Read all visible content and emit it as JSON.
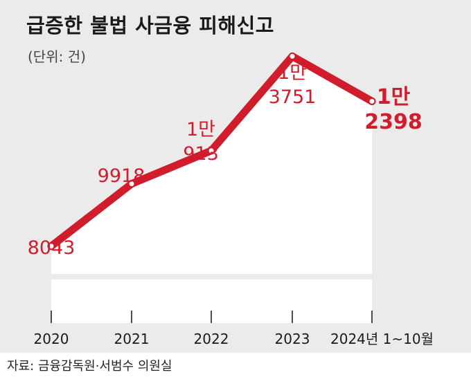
{
  "title": "급증한 불법 사금융 피해신고",
  "unit_note": "(단위: 건)",
  "source": "자료: 금융감독원·서범수 의원실",
  "colors": {
    "line": "#d01c2b",
    "area": "#ffffff",
    "background": "#ebebeb",
    "text": "#1a1a1a"
  },
  "chart_data": {
    "type": "line",
    "categories": [
      "2020",
      "2021",
      "2022",
      "2023",
      "2024년 1~10월"
    ],
    "values": [
      8043,
      9918,
      10913,
      13751,
      12398
    ],
    "data_labels": [
      [
        "8043"
      ],
      [
        "9918"
      ],
      [
        "1만",
        "913"
      ],
      [
        "1만",
        "3751"
      ],
      [
        "1만",
        "2398"
      ]
    ],
    "ylim": [
      7000,
      14300
    ],
    "grid": false,
    "axis_break": true
  }
}
